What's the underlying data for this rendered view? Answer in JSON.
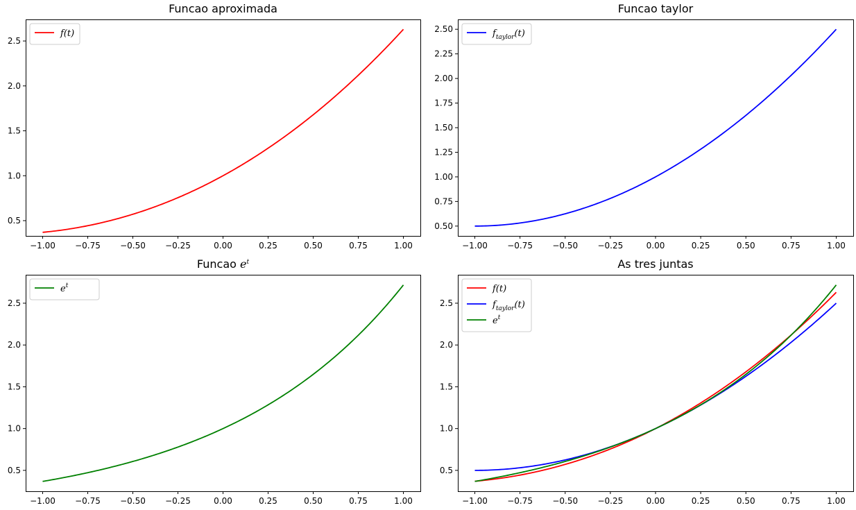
{
  "chart_data": [
    {
      "type": "line",
      "title": "Funcao aproximada",
      "xlim": [
        -1.0,
        1.0
      ],
      "ylim": [
        0.33,
        2.74
      ],
      "xticks": [
        "-1.00",
        "-0.75",
        "-0.50",
        "-0.25",
        "0.00",
        "0.25",
        "0.50",
        "0.75",
        "1.00"
      ],
      "yticks": [
        "0.5",
        "1.0",
        "1.5",
        "2.0",
        "2.5"
      ],
      "legend": "top-left",
      "grid": false,
      "series": [
        {
          "name": "f(t)",
          "color": "#ff0000",
          "func": "approx",
          "x": [
            -1.0,
            -0.75,
            -0.5,
            -0.25,
            0.0,
            0.25,
            0.5,
            0.75,
            1.0
          ],
          "y": [
            0.43,
            0.48,
            0.58,
            0.76,
            1.0,
            1.32,
            1.71,
            2.15,
            2.63
          ]
        }
      ]
    },
    {
      "type": "line",
      "title": "Funcao taylor",
      "xlim": [
        -1.0,
        1.0
      ],
      "ylim": [
        0.4,
        2.6
      ],
      "xticks": [
        "-1.00",
        "-0.75",
        "-0.50",
        "-0.25",
        "0.00",
        "0.25",
        "0.50",
        "0.75",
        "1.00"
      ],
      "yticks": [
        "0.50",
        "0.75",
        "1.00",
        "1.25",
        "1.50",
        "1.75",
        "2.00",
        "2.25",
        "2.50"
      ],
      "legend": "top-left",
      "grid": false,
      "series": [
        {
          "name": "f_taylor(t)",
          "color": "#0000ff",
          "func": "taylor",
          "x": [
            -1.0,
            -0.75,
            -0.5,
            -0.25,
            0.0,
            0.25,
            0.5,
            0.75,
            1.0
          ],
          "y": [
            0.5,
            0.53,
            0.63,
            0.78,
            1.0,
            1.28,
            1.63,
            2.03,
            2.5
          ]
        }
      ]
    },
    {
      "type": "line",
      "title": "Funcao e^t",
      "xlim": [
        -1.0,
        1.0
      ],
      "ylim": [
        0.25,
        2.84
      ],
      "xticks": [
        "-1.00",
        "-0.75",
        "-0.50",
        "-0.25",
        "0.00",
        "0.25",
        "0.50",
        "0.75",
        "1.00"
      ],
      "yticks": [
        "0.5",
        "1.0",
        "1.5",
        "2.0",
        "2.5"
      ],
      "legend": "top-left",
      "grid": false,
      "series": [
        {
          "name": "e^t",
          "color": "#008000",
          "func": "exp",
          "x": [
            -1.0,
            -0.75,
            -0.5,
            -0.25,
            0.0,
            0.25,
            0.5,
            0.75,
            1.0
          ],
          "y": [
            0.37,
            0.47,
            0.61,
            0.78,
            1.0,
            1.28,
            1.65,
            2.12,
            2.72
          ]
        }
      ]
    },
    {
      "type": "line",
      "title": "As tres juntas",
      "xlim": [
        -1.0,
        1.0
      ],
      "ylim": [
        0.25,
        2.84
      ],
      "xticks": [
        "-1.00",
        "-0.75",
        "-0.50",
        "-0.25",
        "0.00",
        "0.25",
        "0.50",
        "0.75",
        "1.00"
      ],
      "yticks": [
        "0.5",
        "1.0",
        "1.5",
        "2.0",
        "2.5"
      ],
      "legend": "top-left",
      "grid": false,
      "series": [
        {
          "name": "f(t)",
          "color": "#ff0000",
          "func": "approx",
          "x": [
            -1.0,
            -0.75,
            -0.5,
            -0.25,
            0.0,
            0.25,
            0.5,
            0.75,
            1.0
          ],
          "y": [
            0.43,
            0.48,
            0.58,
            0.76,
            1.0,
            1.32,
            1.71,
            2.15,
            2.63
          ]
        },
        {
          "name": "f_taylor(t)",
          "color": "#0000ff",
          "func": "taylor",
          "x": [
            -1.0,
            -0.75,
            -0.5,
            -0.25,
            0.0,
            0.25,
            0.5,
            0.75,
            1.0
          ],
          "y": [
            0.5,
            0.53,
            0.63,
            0.78,
            1.0,
            1.28,
            1.63,
            2.03,
            2.5
          ]
        },
        {
          "name": "e^t",
          "color": "#008000",
          "func": "exp",
          "x": [
            -1.0,
            -0.75,
            -0.5,
            -0.25,
            0.0,
            0.25,
            0.5,
            0.75,
            1.0
          ],
          "y": [
            0.37,
            0.47,
            0.61,
            0.78,
            1.0,
            1.28,
            1.65,
            2.12,
            2.72
          ]
        }
      ]
    }
  ]
}
